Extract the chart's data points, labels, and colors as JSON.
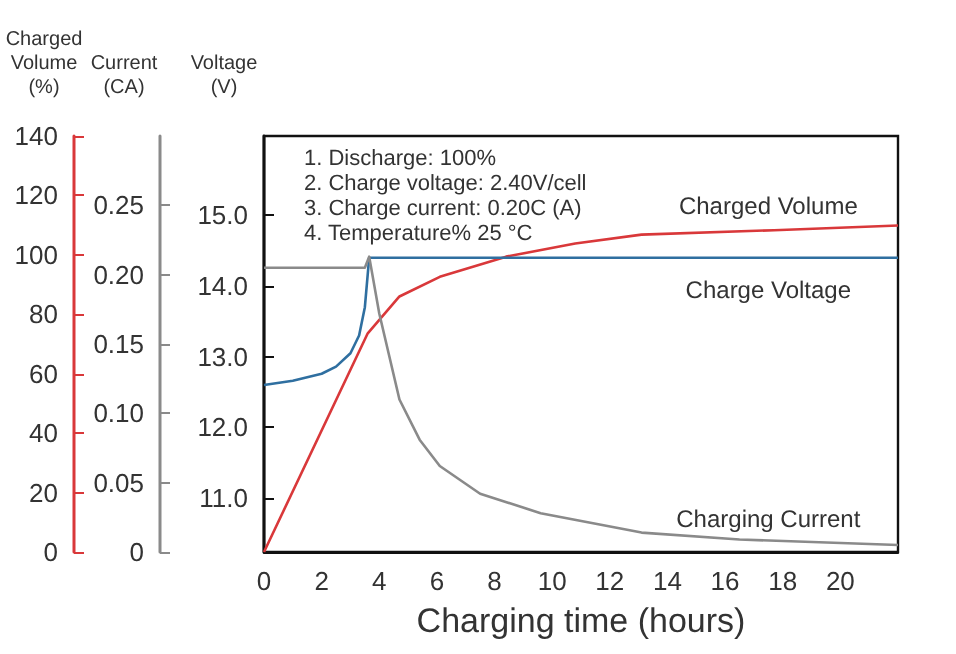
{
  "chart_data": {
    "type": "line",
    "xlabel": "Charging time (hours)",
    "ylabel": "Voltage (V)",
    "y2label": "Current (CA)",
    "y3label": "Charged Volume (%)",
    "annotations": [
      "1. Discharge: 100%",
      "2. Charge voltage: 2.40V/cell",
      "3. Charge current: 0.20C (A)",
      "4. Temperature% 25 °C"
    ],
    "xlim": [
      0,
      22
    ],
    "xticks": [
      0,
      2,
      4,
      6,
      8,
      10,
      12,
      14,
      16,
      18,
      20
    ],
    "ylim": [
      10.24,
      16.12
    ],
    "yticks": [
      {
        "value": 11,
        "label": "11.0"
      },
      {
        "value": 12,
        "label": "12.0"
      },
      {
        "value": 13,
        "label": "13.0"
      },
      {
        "value": 14,
        "label": "14.0"
      },
      {
        "value": 15,
        "label": "15.0"
      }
    ],
    "y2lim": [
      0,
      0.3
    ],
    "y2ticks": [
      0,
      0.05,
      {
        "value": 0.1,
        "label": "0.10"
      },
      0.15,
      {
        "value": 0.2,
        "label": "0.20"
      },
      0.25
    ],
    "y3lim": [
      0,
      140
    ],
    "y3ticks": [
      0,
      20,
      40,
      60,
      80,
      100,
      120,
      140
    ],
    "grid": false,
    "marker": "none",
    "line_style": "solid",
    "series": [
      {
        "name": "Charged Volume",
        "color": "#d9383a",
        "axis": "y3",
        "x": [
          0,
          3.6,
          4.7,
          6.1,
          8.4,
          10.8,
          13.1,
          17.7,
          22
        ],
        "values": [
          0,
          73.6,
          86,
          92.6,
          99.4,
          103.8,
          106.8,
          108.3,
          109.9
        ]
      },
      {
        "name": "Charge Voltage",
        "color": "#2f6fa0",
        "axis": "y",
        "x": [
          0,
          1,
          2,
          2.5,
          3,
          3.3,
          3.5,
          3.65,
          22
        ],
        "values": [
          12.6,
          12.66,
          12.76,
          12.86,
          13.05,
          13.3,
          13.7,
          14.4,
          14.4
        ]
      },
      {
        "name": "Charging Current",
        "color": "#8a8a8a",
        "axis": "y2",
        "x": [
          0,
          3.5,
          3.65,
          4.0,
          4.7,
          5.4,
          6.1,
          7.5,
          9.6,
          13.1,
          16.5,
          22
        ],
        "values": [
          0.205,
          0.205,
          0.213,
          0.172,
          0.11,
          0.081,
          0.062,
          0.042,
          0.028,
          0.014,
          0.009,
          0.005
        ]
      }
    ]
  }
}
